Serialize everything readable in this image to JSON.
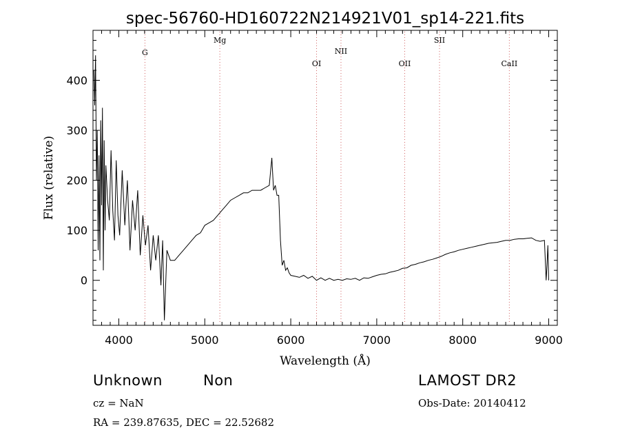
{
  "chart_data": {
    "type": "line",
    "title": "spec-56760-HD160722N214921V01_sp14-221.fits",
    "xlabel": "Wavelength (Å)",
    "ylabel": "Flux (relative)",
    "xlim": [
      3700,
      9100
    ],
    "ylim": [
      -90,
      500
    ],
    "xticks": [
      4000,
      5000,
      6000,
      7000,
      8000,
      9000
    ],
    "yticks": [
      0,
      100,
      200,
      300,
      400
    ],
    "grid": false,
    "lines": [
      {
        "name": "G",
        "x": 4304
      },
      {
        "name": "Mg",
        "x": 5175
      },
      {
        "name": "OI",
        "x": 6300
      },
      {
        "name": "NII",
        "x": 6584
      },
      {
        "name": "OII",
        "x": 7325
      },
      {
        "name": "SII",
        "x": 7730
      },
      {
        "name": "CaII",
        "x": 8542
      }
    ],
    "series": [
      {
        "x": [
          3710,
          3720,
          3730,
          3740,
          3750,
          3760,
          3770,
          3780,
          3790,
          3800,
          3810,
          3820,
          3830,
          3840,
          3850,
          3870,
          3890,
          3910,
          3930,
          3950,
          3970,
          3990,
          4010,
          4040,
          4070,
          4100,
          4130,
          4160,
          4190,
          4220,
          4250,
          4280,
          4310,
          4340,
          4370,
          4400,
          4430,
          4460,
          4490,
          4510,
          4530,
          4560,
          4600,
          4650,
          4700,
          4750,
          4800,
          4850,
          4900,
          4950,
          5000,
          5050,
          5100,
          5150,
          5200,
          5250,
          5300,
          5350,
          5400,
          5450,
          5500,
          5550,
          5600,
          5650,
          5700,
          5750,
          5780,
          5800,
          5820,
          5840,
          5860,
          5880,
          5900,
          5920,
          5940,
          5960,
          5980,
          6000,
          6050,
          6100,
          6150,
          6200,
          6250,
          6300,
          6350,
          6400,
          6450,
          6500,
          6550,
          6600,
          6650,
          6700,
          6750,
          6800,
          6850,
          6900,
          6950,
          7000,
          7050,
          7100,
          7150,
          7200,
          7250,
          7300,
          7350,
          7400,
          7450,
          7500,
          7550,
          7600,
          7650,
          7700,
          7750,
          7800,
          7850,
          7900,
          7950,
          8000,
          8050,
          8100,
          8150,
          8200,
          8250,
          8300,
          8350,
          8400,
          8450,
          8500,
          8550,
          8600,
          8650,
          8700,
          8750,
          8800,
          8850,
          8900,
          8950,
          8970,
          8980,
          8990,
          9000
        ],
        "y": [
          420,
          350,
          450,
          200,
          300,
          60,
          250,
          40,
          320,
          150,
          345,
          20,
          280,
          100,
          230,
          160,
          120,
          260,
          140,
          80,
          240,
          130,
          90,
          220,
          110,
          200,
          60,
          160,
          100,
          180,
          50,
          130,
          70,
          110,
          20,
          90,
          40,
          90,
          -10,
          80,
          -80,
          60,
          40,
          40,
          50,
          60,
          70,
          80,
          90,
          95,
          110,
          115,
          120,
          130,
          140,
          150,
          160,
          165,
          170,
          175,
          175,
          180,
          180,
          180,
          185,
          190,
          245,
          180,
          190,
          170,
          170,
          80,
          30,
          40,
          20,
          25,
          15,
          10,
          8,
          6,
          10,
          4,
          8,
          0,
          5,
          0,
          4,
          0,
          2,
          0,
          3,
          2,
          4,
          0,
          5,
          4,
          7,
          10,
          12,
          13,
          16,
          18,
          20,
          24,
          25,
          30,
          32,
          35,
          37,
          40,
          42,
          45,
          48,
          52,
          55,
          57,
          60,
          62,
          64,
          66,
          68,
          70,
          72,
          74,
          75,
          76,
          78,
          80,
          80,
          82,
          83,
          83,
          84,
          85,
          80,
          78,
          80,
          0,
          30,
          70,
          0
        ]
      }
    ]
  },
  "info": {
    "object_class": "Unknown",
    "subclass": "Non",
    "cz": "cz = NaN",
    "coords": "RA = 239.87635, DEC =  22.52682",
    "survey": "LAMOST DR2",
    "obs_date": "Obs-Date: 20140412"
  }
}
